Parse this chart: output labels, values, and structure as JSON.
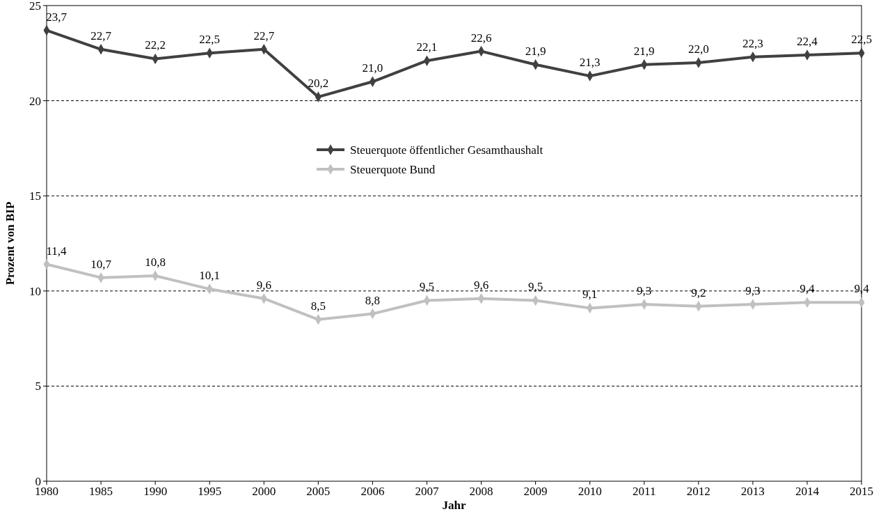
{
  "chart_data": {
    "type": "line",
    "xlabel": "Jahr",
    "ylabel": "Prozent von BIP",
    "categories": [
      "1980",
      "1985",
      "1990",
      "1995",
      "2000",
      "2005",
      "2006",
      "2007",
      "2008",
      "2009",
      "2010",
      "2011",
      "2012",
      "2013",
      "2014",
      "2015"
    ],
    "series": [
      {
        "name": "Steuerquote öffentlicher Gesamthaushalt",
        "color": "#404040",
        "values": [
          23.7,
          22.7,
          22.2,
          22.5,
          22.7,
          20.2,
          21.0,
          22.1,
          22.6,
          21.9,
          21.3,
          21.9,
          22.0,
          22.3,
          22.4,
          22.5
        ],
        "value_labels": [
          "23,7",
          "22,7",
          "22,2",
          "22,5",
          "22,7",
          "20,2",
          "21,0",
          "22,1",
          "22,6",
          "21,9",
          "21,3",
          "21,9",
          "22,0",
          "22,3",
          "22,4",
          "22,5"
        ]
      },
      {
        "name": "Steuerquote Bund",
        "color": "#c0c0c0",
        "values": [
          11.4,
          10.7,
          10.8,
          10.1,
          9.6,
          8.5,
          8.8,
          9.5,
          9.6,
          9.5,
          9.1,
          9.3,
          9.2,
          9.3,
          9.4,
          9.4
        ],
        "value_labels": [
          "11,4",
          "10,7",
          "10,8",
          "10,1",
          "9,6",
          "8,5",
          "8,8",
          "9,5",
          "9,6",
          "9,5",
          "9,1",
          "9,3",
          "9,2",
          "9,3",
          "9,4",
          "9,4"
        ]
      }
    ],
    "ylim": [
      0,
      25
    ],
    "yticks": [
      0,
      5,
      10,
      15,
      20,
      25
    ],
    "grid": "y",
    "legend": "top",
    "marker": "diamond",
    "line_style": "solid"
  }
}
